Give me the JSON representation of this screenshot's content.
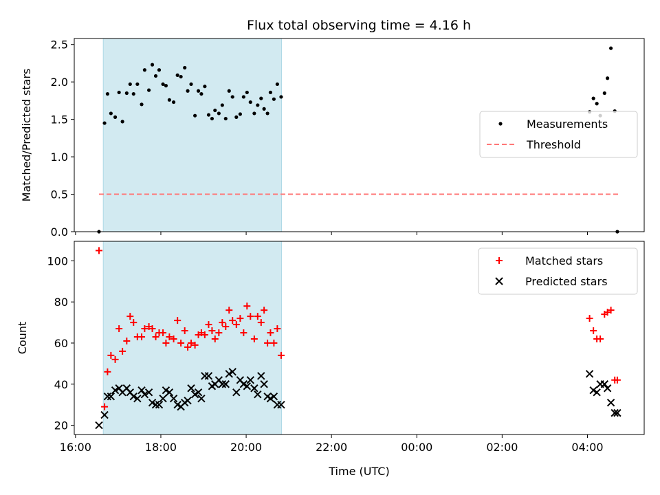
{
  "chart_data": [
    {
      "type": "scatter",
      "title": "Flux total observing time = 4.16 h",
      "xlabel": "",
      "ylabel": "Matched/Predicted stars",
      "x_units": "hours since 00:00 of first day",
      "xlim": [
        15.97,
        29.33
      ],
      "ylim": [
        0.0,
        2.58
      ],
      "yticks": [
        0.0,
        0.5,
        1.0,
        1.5,
        2.0,
        2.5
      ],
      "ytick_labels": [
        "0.0",
        "0.5",
        "1.0",
        "1.5",
        "2.0",
        "2.5"
      ],
      "shaded_span": [
        16.65,
        20.83
      ],
      "shade_color": "#add8e6",
      "legend": {
        "placement": "center-right",
        "entries": [
          "Measurements",
          "Threshold"
        ]
      },
      "series": [
        {
          "name": "Measurements",
          "marker": "dot",
          "color": "#000000",
          "x": [
            16.55,
            16.68,
            16.75,
            16.83,
            16.93,
            17.02,
            17.1,
            17.2,
            17.28,
            17.36,
            17.45,
            17.55,
            17.62,
            17.72,
            17.8,
            17.88,
            17.96,
            18.05,
            18.12,
            18.2,
            18.3,
            18.39,
            18.47,
            18.56,
            18.63,
            18.71,
            18.8,
            18.88,
            18.95,
            19.03,
            19.12,
            19.2,
            19.27,
            19.36,
            19.44,
            19.52,
            19.6,
            19.68,
            19.77,
            19.86,
            19.94,
            20.02,
            20.1,
            20.19,
            20.27,
            20.35,
            20.42,
            20.5,
            20.57,
            20.65,
            20.73,
            20.82,
            28.05,
            28.14,
            28.22,
            28.3,
            28.4,
            28.47,
            28.55,
            28.64,
            28.7
          ],
          "y": [
            0.0,
            1.45,
            1.84,
            1.58,
            1.53,
            1.86,
            1.47,
            1.85,
            1.97,
            1.84,
            1.97,
            1.7,
            2.16,
            1.89,
            2.23,
            2.08,
            2.16,
            1.97,
            1.95,
            1.76,
            1.73,
            2.09,
            2.07,
            2.19,
            1.88,
            1.97,
            1.55,
            1.88,
            1.84,
            1.94,
            1.56,
            1.51,
            1.62,
            1.58,
            1.69,
            1.51,
            1.88,
            1.8,
            1.53,
            1.57,
            1.8,
            1.86,
            1.73,
            1.58,
            1.69,
            1.78,
            1.64,
            1.58,
            1.86,
            1.77,
            1.97,
            1.8,
            1.6,
            1.78,
            1.71,
            1.55,
            1.85,
            2.05,
            2.45,
            1.61,
            0.0
          ]
        },
        {
          "name": "Threshold",
          "marker": "dashed-line",
          "color": "#ff7777",
          "x": [
            16.55,
            28.75
          ],
          "y": [
            0.5,
            0.5
          ]
        }
      ]
    },
    {
      "type": "scatter",
      "title": "",
      "xlabel": "Time (UTC)",
      "ylabel": "Count",
      "x_units": "hours since 00:00 of first day",
      "xlim": [
        15.97,
        29.33
      ],
      "ylim": [
        15.5,
        109.5
      ],
      "yticks": [
        20,
        40,
        60,
        80,
        100
      ],
      "ytick_labels": [
        "20",
        "40",
        "60",
        "80",
        "100"
      ],
      "xticks": [
        16,
        18,
        20,
        22,
        24,
        26,
        28
      ],
      "xtick_labels": [
        "16:00",
        "18:00",
        "20:00",
        "22:00",
        "00:00",
        "02:00",
        "04:00"
      ],
      "shaded_span": [
        16.65,
        20.83
      ],
      "shade_color": "#add8e6",
      "legend": {
        "placement": "top-right",
        "entries": [
          "Matched stars",
          "Predicted stars"
        ]
      },
      "series": [
        {
          "name": "Matched stars",
          "marker": "plus",
          "color": "#ff0000",
          "x": [
            16.55,
            16.68,
            16.75,
            16.83,
            16.93,
            17.02,
            17.1,
            17.2,
            17.28,
            17.36,
            17.45,
            17.55,
            17.62,
            17.72,
            17.8,
            17.88,
            17.96,
            18.05,
            18.12,
            18.2,
            18.3,
            18.39,
            18.47,
            18.56,
            18.63,
            18.71,
            18.8,
            18.88,
            18.95,
            19.03,
            19.12,
            19.2,
            19.27,
            19.36,
            19.44,
            19.52,
            19.6,
            19.68,
            19.77,
            19.86,
            19.94,
            20.02,
            20.1,
            20.19,
            20.27,
            20.35,
            20.42,
            20.5,
            20.57,
            20.65,
            20.73,
            20.82,
            28.05,
            28.14,
            28.22,
            28.3,
            28.4,
            28.47,
            28.55,
            28.64,
            28.7
          ],
          "y": [
            105,
            29,
            46,
            54,
            52,
            67,
            56,
            61,
            73,
            70,
            63,
            63,
            67,
            68,
            67,
            63,
            65,
            65,
            60,
            63,
            62,
            71,
            60,
            66,
            58,
            60,
            59,
            64,
            65,
            64,
            69,
            66,
            62,
            65,
            70,
            68,
            76,
            71,
            69,
            72,
            65,
            78,
            73,
            62,
            73,
            70,
            76,
            60,
            65,
            60,
            67,
            54,
            72,
            66,
            62,
            62,
            74,
            75,
            76,
            42,
            42
          ]
        },
        {
          "name": "Predicted stars",
          "marker": "x",
          "color": "#000000",
          "x": [
            16.55,
            16.68,
            16.75,
            16.83,
            16.93,
            17.02,
            17.1,
            17.2,
            17.28,
            17.36,
            17.45,
            17.55,
            17.62,
            17.72,
            17.8,
            17.88,
            17.96,
            18.05,
            18.12,
            18.2,
            18.3,
            18.39,
            18.47,
            18.56,
            18.63,
            18.71,
            18.8,
            18.88,
            18.95,
            19.03,
            19.12,
            19.2,
            19.27,
            19.36,
            19.44,
            19.52,
            19.6,
            19.68,
            19.77,
            19.86,
            19.94,
            20.02,
            20.1,
            20.19,
            20.27,
            20.35,
            20.42,
            20.5,
            20.57,
            20.65,
            20.73,
            20.82,
            28.05,
            28.14,
            28.22,
            28.3,
            28.4,
            28.47,
            28.55,
            28.64,
            28.7
          ],
          "y": [
            20,
            25,
            34,
            34,
            37,
            38,
            36,
            38,
            36,
            34,
            33,
            37,
            35,
            36,
            31,
            30,
            30,
            33,
            37,
            36,
            33,
            30,
            29,
            31,
            32,
            38,
            35,
            36,
            33,
            44,
            44,
            39,
            40,
            42,
            40,
            40,
            45,
            46,
            36,
            42,
            40,
            39,
            42,
            38,
            35,
            44,
            40,
            34,
            33,
            34,
            30,
            30,
            45,
            37,
            36,
            40,
            40,
            38,
            31,
            26,
            26
          ]
        }
      ]
    }
  ]
}
